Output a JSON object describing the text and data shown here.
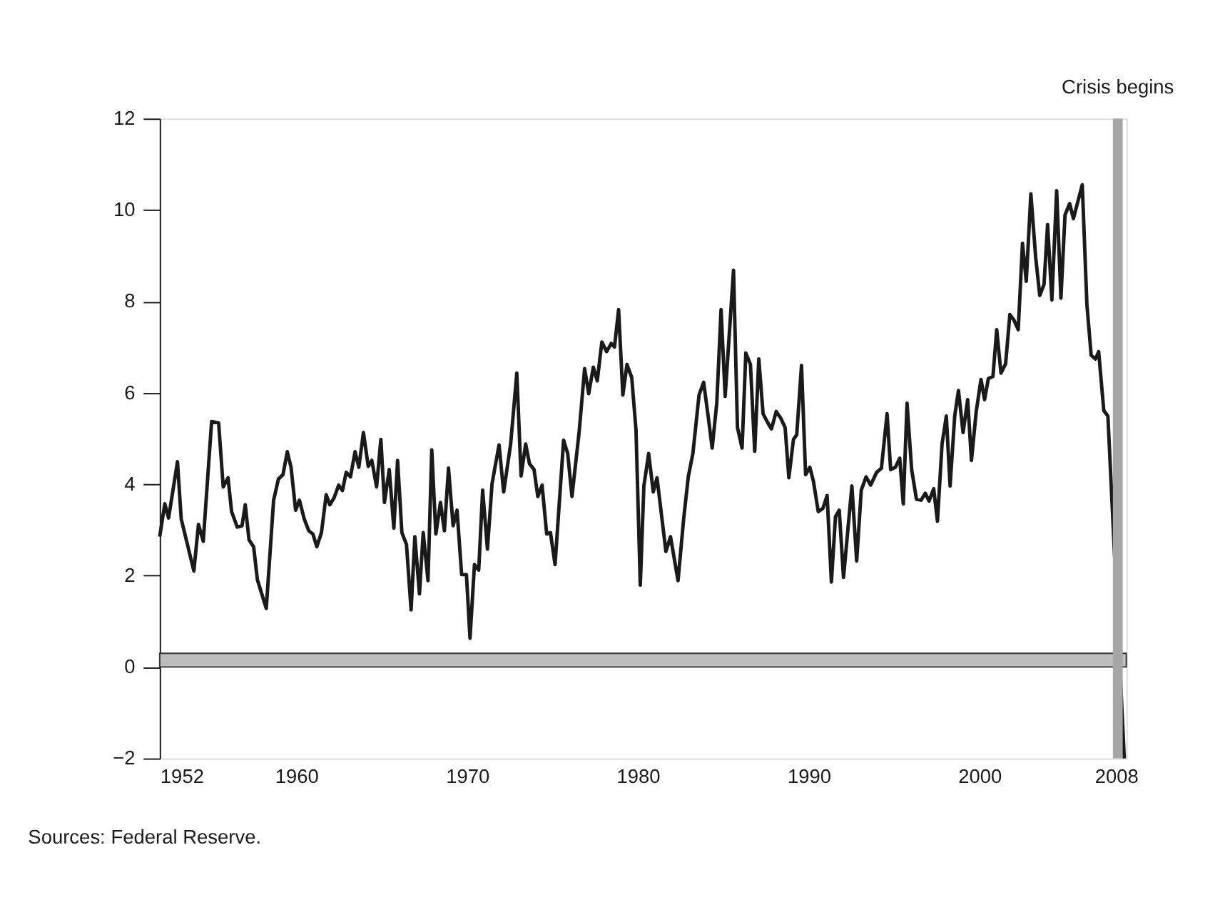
{
  "chart_data": {
    "type": "line",
    "x": [
      1952.0,
      1952.3,
      1952.52,
      1953.04,
      1953.26,
      1954.0,
      1954.27,
      1954.55,
      1955.04,
      1955.45,
      1955.72,
      1956.0,
      1956.21,
      1956.54,
      1956.82,
      1957.01,
      1957.23,
      1957.5,
      1957.72,
      1958.24,
      1958.67,
      1958.95,
      1959.22,
      1959.47,
      1959.69,
      1959.96,
      1960.18,
      1960.46,
      1960.73,
      1960.97,
      1961.2,
      1961.47,
      1961.75,
      1961.96,
      1962.21,
      1962.48,
      1962.7,
      1962.92,
      1963.17,
      1963.44,
      1963.66,
      1963.93,
      1964.21,
      1964.42,
      1964.7,
      1964.95,
      1965.16,
      1965.44,
      1965.71,
      1965.93,
      1966.18,
      1966.45,
      1966.72,
      1966.94,
      1967.21,
      1967.43,
      1967.71,
      1967.93,
      1968.17,
      1968.44,
      1968.67,
      1968.91,
      1969.18,
      1969.41,
      1969.68,
      1969.96,
      1970.17,
      1970.43,
      1970.68,
      1970.91,
      1971.19,
      1971.46,
      1971.87,
      1972.14,
      1972.55,
      1972.91,
      1973.16,
      1973.43,
      1973.65,
      1973.92,
      1974.14,
      1974.39,
      1974.66,
      1974.88,
      1975.15,
      1975.65,
      1975.89,
      1976.14,
      1976.57,
      1976.88,
      1977.12,
      1977.39,
      1977.62,
      1977.89,
      1978.17,
      1978.44,
      1978.63,
      1978.87,
      1979.12,
      1979.36,
      1979.64,
      1979.89,
      1980.14,
      1980.35,
      1980.63,
      1980.9,
      1981.12,
      1981.64,
      1981.91,
      1982.35,
      1982.68,
      1982.95,
      1983.22,
      1983.58,
      1983.85,
      1984.13,
      1984.35,
      1984.62,
      1984.87,
      1985.11,
      1985.6,
      1985.83,
      1986.1,
      1986.32,
      1986.59,
      1986.84,
      1987.08,
      1987.33,
      1987.61,
      1987.82,
      1988.1,
      1988.37,
      1988.62,
      1988.84,
      1989.11,
      1989.3,
      1989.58,
      1989.82,
      1990.07,
      1990.28,
      1990.56,
      1990.83,
      1991.08,
      1991.33,
      1991.57,
      1991.79,
      1992.04,
      1992.53,
      1992.81,
      1993.08,
      1993.36,
      1993.63,
      1993.98,
      1994.26,
      1994.59,
      1994.8,
      1995.08,
      1995.33,
      1995.54,
      1995.76,
      1996.03,
      1996.31,
      1996.58,
      1996.83,
      1997.05,
      1997.32,
      1997.54,
      1997.81,
      1998.06,
      1998.28,
      1998.55,
      1998.77,
      1999.04,
      1999.31,
      1999.53,
      1999.81,
      2000.09,
      2000.3,
      2000.52,
      2000.79,
      2001.01,
      2001.26,
      2001.53,
      2001.78,
      2002.02,
      2002.27,
      2002.52,
      2002.74,
      2003.01,
      2003.29,
      2003.53,
      2003.78,
      2003.99,
      2004.24,
      2004.52,
      2004.77,
      2005.01,
      2005.28,
      2005.5,
      2006.02,
      2006.29,
      2006.54,
      2006.79,
      2006.98,
      2007.28,
      2007.52,
      2008.48
    ],
    "series": [
      {
        "color": "#1a1a1a",
        "values": [
          2.85,
          3.57,
          3.26,
          4.49,
          3.24,
          2.1,
          3.12,
          2.75,
          5.37,
          5.34,
          3.94,
          4.14,
          3.4,
          3.06,
          3.09,
          3.55,
          2.78,
          2.63,
          1.91,
          1.28,
          3.65,
          4.11,
          4.21,
          4.71,
          4.37,
          3.43,
          3.65,
          3.24,
          2.98,
          2.91,
          2.63,
          2.94,
          3.77,
          3.55,
          3.7,
          3.98,
          3.86,
          4.26,
          4.16,
          4.71,
          4.37,
          5.13,
          4.39,
          4.52,
          3.94,
          4.98,
          3.6,
          4.32,
          3.04,
          4.52,
          2.94,
          2.68,
          1.25,
          2.85,
          1.6,
          2.94,
          1.89,
          4.75,
          2.91,
          3.6,
          2.98,
          4.35,
          3.09,
          3.43,
          2.02,
          2.02,
          0.63,
          2.24,
          2.12,
          3.87,
          2.58,
          4.01,
          4.86,
          3.83,
          4.88,
          6.43,
          4.18,
          4.88,
          4.45,
          4.32,
          3.73,
          3.98,
          2.91,
          2.94,
          2.24,
          4.96,
          4.67,
          3.73,
          5.18,
          6.53,
          5.98,
          6.56,
          6.26,
          7.11,
          6.9,
          7.08,
          7.0,
          7.82,
          5.95,
          6.62,
          6.33,
          5.18,
          1.79,
          3.96,
          4.67,
          3.83,
          4.14,
          2.53,
          2.85,
          1.89,
          3.24,
          4.16,
          4.67,
          5.95,
          6.23,
          5.44,
          4.79,
          5.78,
          7.82,
          5.92,
          8.68,
          5.24,
          4.79,
          6.87,
          6.62,
          4.72,
          6.74,
          5.54,
          5.34,
          5.21,
          5.59,
          5.44,
          5.24,
          4.14,
          4.98,
          5.08,
          6.6,
          4.21,
          4.37,
          4.06,
          3.4,
          3.47,
          3.75,
          1.86,
          3.29,
          3.43,
          1.96,
          3.96,
          2.32,
          3.87,
          4.16,
          3.98,
          4.26,
          4.35,
          5.54,
          4.32,
          4.37,
          4.57,
          3.57,
          5.77,
          4.32,
          3.67,
          3.65,
          3.8,
          3.63,
          3.9,
          3.19,
          4.88,
          5.49,
          3.96,
          5.49,
          6.05,
          5.13,
          5.85,
          4.52,
          5.59,
          6.29,
          5.85,
          6.31,
          6.36,
          7.38,
          6.43,
          6.63,
          7.71,
          7.59,
          7.38,
          9.27,
          8.44,
          10.35,
          8.97,
          8.13,
          8.37,
          9.68,
          8.03,
          10.42,
          8.07,
          9.89,
          10.14,
          9.81,
          10.55,
          7.94,
          6.82,
          6.74,
          6.9,
          5.61,
          5.49,
          -2.0
        ]
      }
    ],
    "xlim": [
      1952,
      2008.6
    ],
    "xticks": [
      1952,
      1960,
      1970,
      1980,
      1990,
      2000,
      2008
    ],
    "ylim": [
      -2,
      12
    ],
    "yticks": [
      -2,
      0,
      2,
      4,
      6,
      8,
      10,
      12
    ],
    "ref_lines": [
      {
        "axis": "x",
        "value": 2008.1,
        "label": "Crisis begins",
        "color": "#a6a6a6"
      }
    ],
    "bands": [
      {
        "axis": "y",
        "from": 0,
        "to": 0.3,
        "color": "#bdbdbd"
      }
    ],
    "annotations": [
      "Sources:  Federal Reserve."
    ],
    "grid": false,
    "marker": "none",
    "line_style": "solid"
  }
}
